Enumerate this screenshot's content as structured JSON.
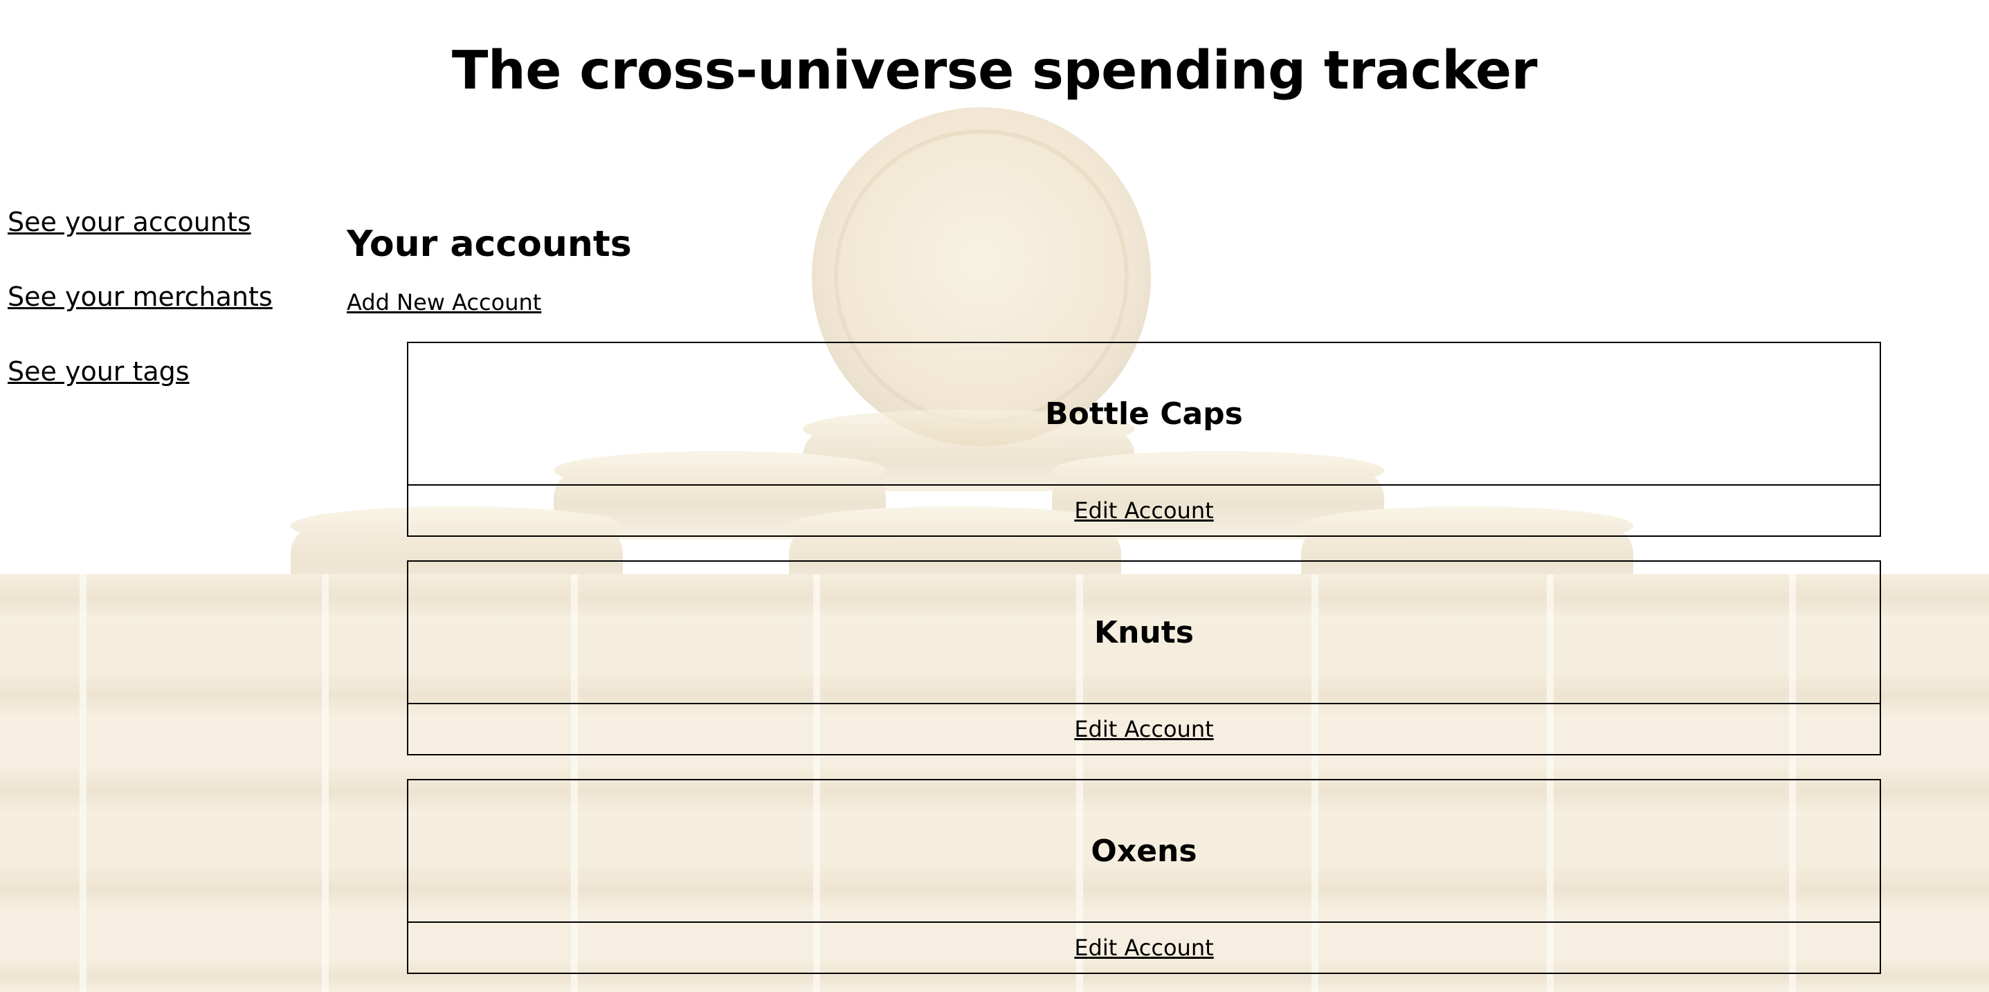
{
  "header": {
    "title": "The cross-universe spending tracker"
  },
  "nav": {
    "items": [
      {
        "label": "See your accounts"
      },
      {
        "label": "See your merchants"
      },
      {
        "label": "See your tags"
      }
    ]
  },
  "main": {
    "section_title": "Your accounts",
    "add_link": "Add New Account",
    "accounts": [
      {
        "name": "Bottle Caps",
        "edit_label": "Edit Account"
      },
      {
        "name": "Knuts",
        "edit_label": "Edit Account"
      },
      {
        "name": "Oxens",
        "edit_label": "Edit Account"
      }
    ]
  },
  "theme": {
    "background_image": "coin-stack-photo",
    "coin_color": "#d7b46a"
  }
}
